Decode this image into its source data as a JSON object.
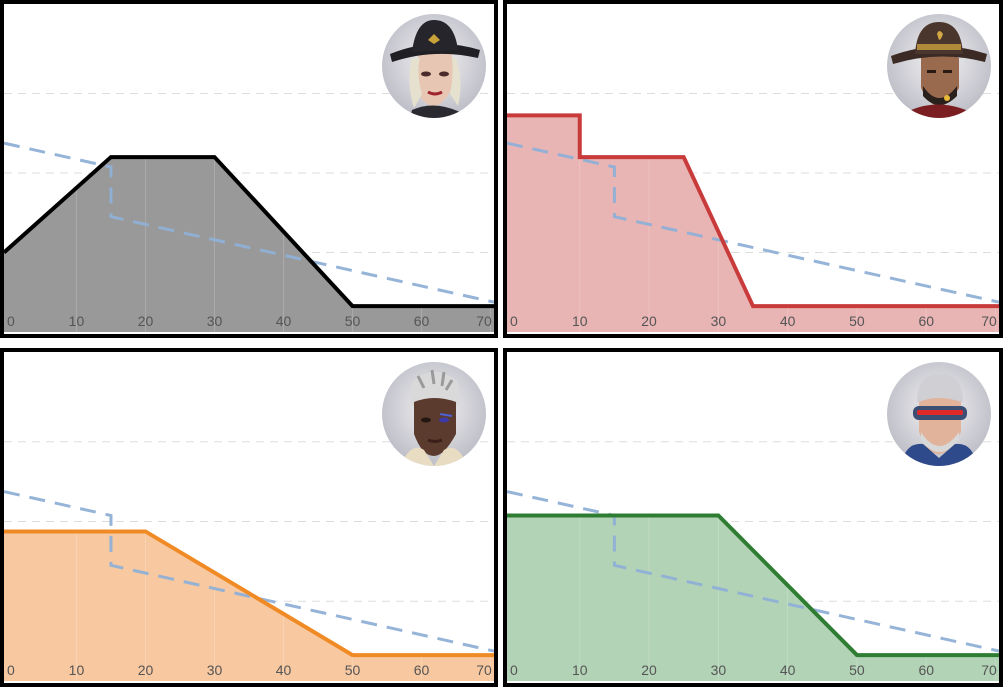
{
  "colors": {
    "grid": "#dddddd",
    "reference": "#8fb0d6",
    "tick_text": "#555555"
  },
  "chart_data": [
    {
      "type": "area",
      "title": "",
      "xlabel": "",
      "ylabel": "",
      "xlim": [
        -0.5,
        70.5
      ],
      "ylim": [
        0,
        165
      ],
      "x_ticks": [
        "0",
        "10",
        "20",
        "30",
        "40",
        "50",
        "60",
        "70"
      ],
      "y_gridlines": [
        40,
        80,
        120
      ],
      "grid": true,
      "portrait_icon": "ashe-portrait-icon",
      "series": [
        {
          "role": "main",
          "color": "#000000",
          "fill": "#999999",
          "points": [
            [
              -0.5,
              40
            ],
            [
              15,
              88
            ],
            [
              30,
              88
            ],
            [
              50,
              13
            ],
            [
              70.5,
              13
            ]
          ]
        },
        {
          "role": "reference",
          "color": "#8fb0d6",
          "dashed": true,
          "points": [
            [
              -0.5,
              95
            ],
            [
              15,
              83
            ],
            [
              15,
              58
            ],
            [
              70.5,
              15
            ]
          ]
        }
      ]
    },
    {
      "type": "area",
      "title": "",
      "xlabel": "",
      "ylabel": "",
      "xlim": [
        -0.5,
        70.5
      ],
      "ylim": [
        0,
        165
      ],
      "x_ticks": [
        "0",
        "10",
        "20",
        "30",
        "40",
        "50",
        "60",
        "70"
      ],
      "y_gridlines": [
        40,
        80,
        120
      ],
      "grid": true,
      "portrait_icon": "mccree-portrait-icon",
      "series": [
        {
          "role": "main",
          "color": "#c93b3b",
          "fill": "#e9b4b4",
          "points": [
            [
              -0.5,
              109
            ],
            [
              10,
              109
            ],
            [
              10,
              88
            ],
            [
              25,
              88
            ],
            [
              35,
              13
            ],
            [
              70.5,
              13
            ]
          ]
        },
        {
          "role": "reference",
          "color": "#8fb0d6",
          "dashed": true,
          "points": [
            [
              -0.5,
              95
            ],
            [
              15,
              83
            ],
            [
              15,
              58
            ],
            [
              70.5,
              15
            ]
          ]
        }
      ]
    },
    {
      "type": "area",
      "title": "",
      "xlabel": "",
      "ylabel": "",
      "xlim": [
        -0.5,
        70.5
      ],
      "ylim": [
        0,
        165
      ],
      "x_ticks": [
        "0",
        "10",
        "20",
        "30",
        "40",
        "50",
        "60",
        "70"
      ],
      "y_gridlines": [
        40,
        80,
        120
      ],
      "grid": true,
      "portrait_icon": "sojourn-portrait-icon",
      "series": [
        {
          "role": "main",
          "color": "#f08a24",
          "fill": "#f8c8a0",
          "points": [
            [
              -0.5,
              75
            ],
            [
              20,
              75
            ],
            [
              50,
              13
            ],
            [
              70.5,
              13
            ]
          ]
        },
        {
          "role": "reference",
          "color": "#8fb0d6",
          "dashed": true,
          "points": [
            [
              -0.5,
              95
            ],
            [
              15,
              83
            ],
            [
              15,
              58
            ],
            [
              70.5,
              15
            ]
          ]
        }
      ]
    },
    {
      "type": "area",
      "title": "",
      "xlabel": "",
      "ylabel": "",
      "xlim": [
        -0.5,
        70.5
      ],
      "ylim": [
        0,
        165
      ],
      "x_ticks": [
        "0",
        "10",
        "20",
        "30",
        "40",
        "50",
        "60",
        "70"
      ],
      "y_gridlines": [
        40,
        80,
        120
      ],
      "grid": true,
      "portrait_icon": "soldier76-portrait-icon",
      "series": [
        {
          "role": "main",
          "color": "#2e7d32",
          "fill": "#b2d3b6",
          "points": [
            [
              -0.5,
              83
            ],
            [
              30,
              83
            ],
            [
              50,
              13
            ],
            [
              70.5,
              13
            ]
          ]
        },
        {
          "role": "reference",
          "color": "#8fb0d6",
          "dashed": true,
          "points": [
            [
              -0.5,
              95
            ],
            [
              15,
              83
            ],
            [
              15,
              58
            ],
            [
              70.5,
              15
            ]
          ]
        }
      ]
    }
  ]
}
